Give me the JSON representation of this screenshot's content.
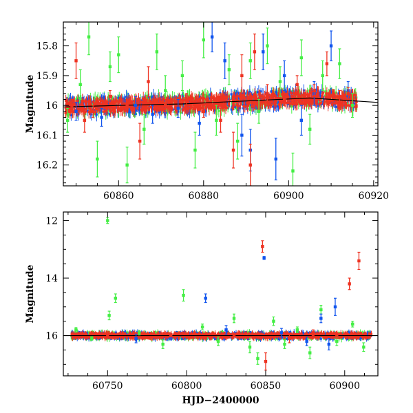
{
  "colors": {
    "green": "#44ee44",
    "blue": "#1155ee",
    "red": "#ee3322",
    "model": "#000000"
  },
  "chart_data": [
    {
      "type": "scatter",
      "panel": "top",
      "xlabel": "",
      "ylabel": "Magnitude",
      "xlim": [
        60847,
        60921
      ],
      "ylim": [
        16.27,
        15.72
      ],
      "y_inverted": true,
      "xticks": [
        60860,
        60880,
        60900,
        60920
      ],
      "yticks": [
        15.8,
        15.9,
        16,
        16.1,
        16.2
      ],
      "ytick_labels": [
        "15.8",
        "15.9",
        "16",
        "16.1",
        "16.2"
      ],
      "series": [
        {
          "color": "green",
          "x": [
            60848,
            60851,
            60853,
            60855,
            60858,
            60860,
            60862,
            60866,
            60869,
            60871,
            60875,
            60878,
            60880,
            60883,
            60886,
            60888,
            60891,
            60893,
            60895,
            60898,
            60901,
            60903,
            60905,
            60908,
            60912,
            60915
          ],
          "y": [
            16.05,
            15.93,
            15.77,
            16.18,
            15.87,
            15.83,
            16.2,
            16.08,
            15.82,
            15.95,
            15.9,
            16.15,
            15.78,
            16.05,
            15.88,
            16.12,
            15.85,
            16.02,
            15.8,
            15.92,
            16.22,
            15.84,
            16.08,
            15.9,
            15.86,
            16.0
          ],
          "err": [
            0.04,
            0.05,
            0.06,
            0.06,
            0.05,
            0.06,
            0.06,
            0.05,
            0.06,
            0.05,
            0.05,
            0.06,
            0.06,
            0.05,
            0.05,
            0.06,
            0.06,
            0.04,
            0.06,
            0.05,
            0.06,
            0.06,
            0.05,
            0.05,
            0.05,
            0.04
          ]
        },
        {
          "color": "blue",
          "x": [
            60850,
            60856,
            60864,
            60868,
            60874,
            60879,
            60882,
            60885,
            60889,
            60891,
            60894,
            60897,
            60899,
            60903,
            60906,
            60910,
            60914
          ],
          "y": [
            16.02,
            16.04,
            16.0,
            16.03,
            16.01,
            16.06,
            15.77,
            15.85,
            16.1,
            16.15,
            15.82,
            16.18,
            15.9,
            16.05,
            15.96,
            15.8,
            15.95
          ],
          "err": [
            0.03,
            0.03,
            0.03,
            0.03,
            0.03,
            0.04,
            0.05,
            0.06,
            0.07,
            0.07,
            0.06,
            0.07,
            0.05,
            0.05,
            0.04,
            0.05,
            0.03
          ]
        },
        {
          "color": "red",
          "x": [
            60849,
            60850,
            60852,
            60854,
            60858,
            60862,
            60865,
            60867,
            60871,
            60876,
            60880,
            60884,
            60887,
            60889,
            60891,
            60892,
            60895,
            60899,
            60902,
            60906,
            60909,
            60912,
            60914
          ],
          "y": [
            16.0,
            15.85,
            16.05,
            16.02,
            15.97,
            16.0,
            16.12,
            15.92,
            16.0,
            15.98,
            16.02,
            16.05,
            16.15,
            15.9,
            16.2,
            15.82,
            15.96,
            15.98,
            15.93,
            15.95,
            15.86,
            15.97,
            15.96
          ],
          "err": [
            0.02,
            0.06,
            0.04,
            0.02,
            0.02,
            0.02,
            0.06,
            0.05,
            0.02,
            0.02,
            0.02,
            0.04,
            0.06,
            0.07,
            0.07,
            0.06,
            0.03,
            0.02,
            0.03,
            0.02,
            0.04,
            0.02,
            0.02
          ]
        }
      ],
      "model_line": {
        "x": [
          60847,
          60860,
          60875,
          60890,
          60905,
          60921
        ],
        "y": [
          16.005,
          16.0,
          15.995,
          15.985,
          15.975,
          15.99
        ]
      }
    },
    {
      "type": "scatter",
      "panel": "bottom",
      "xlabel": "HJD−2400000",
      "ylabel": "Magnitude",
      "xlim": [
        60722,
        60921
      ],
      "ylim": [
        17.4,
        11.7
      ],
      "y_inverted": true,
      "xticks": [
        60750,
        60800,
        60850,
        60900
      ],
      "yticks": [
        12,
        14,
        16
      ],
      "ytick_labels": [
        "12",
        "14",
        "16"
      ],
      "series": [
        {
          "color": "green",
          "x": [
            60730,
            60740,
            60750,
            60751,
            60755,
            60770,
            60785,
            60798,
            60810,
            60820,
            60830,
            60840,
            60845,
            60855,
            60862,
            60870,
            60878,
            60885,
            60895,
            60905,
            60912
          ],
          "y": [
            15.8,
            16.1,
            12.0,
            15.3,
            14.7,
            15.9,
            16.3,
            14.6,
            15.7,
            16.2,
            15.4,
            16.4,
            16.8,
            15.5,
            16.3,
            15.8,
            16.6,
            15.1,
            16.2,
            15.6,
            16.4
          ],
          "err": [
            0.08,
            0.06,
            0.1,
            0.15,
            0.15,
            0.08,
            0.15,
            0.2,
            0.1,
            0.15,
            0.15,
            0.2,
            0.2,
            0.15,
            0.15,
            0.1,
            0.2,
            0.15,
            0.15,
            0.1,
            0.15
          ]
        },
        {
          "color": "blue",
          "x": [
            60768,
            60790,
            60812,
            60825,
            60849,
            60860,
            60876,
            60885,
            60890,
            60894
          ],
          "y": [
            16.1,
            16.05,
            14.7,
            15.8,
            13.3,
            15.9,
            16.2,
            15.4,
            16.3,
            15.0
          ],
          "err": [
            0.15,
            0.1,
            0.15,
            0.15,
            0.05,
            0.15,
            0.15,
            0.15,
            0.2,
            0.3
          ]
        },
        {
          "color": "red",
          "x": [
            60750,
            60790,
            60830,
            60848,
            60850,
            60865,
            60880,
            60895,
            60903,
            60909
          ],
          "y": [
            16.0,
            16.0,
            16.0,
            12.9,
            16.9,
            16.1,
            15.9,
            16.0,
            14.2,
            13.4
          ],
          "err": [
            0.05,
            0.05,
            0.05,
            0.2,
            0.3,
            0.15,
            0.1,
            0.1,
            0.2,
            0.3
          ]
        }
      ],
      "model_line": {
        "x": [
          60722,
          60921
        ],
        "y": [
          16.0,
          16.0
        ]
      }
    }
  ]
}
